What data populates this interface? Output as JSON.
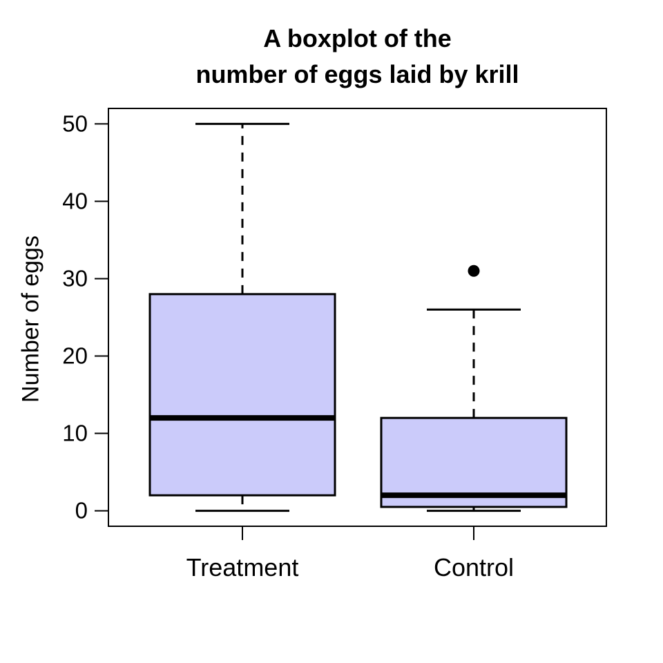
{
  "title": {
    "line1": "A boxplot of the",
    "line2": "number of eggs laid by krill"
  },
  "y_axis": {
    "label": "Number of eggs",
    "ticks": [
      0,
      10,
      20,
      30,
      40,
      50
    ]
  },
  "x_axis": {
    "categories": [
      "Treatment",
      "Control"
    ]
  },
  "chart_data": {
    "type": "boxplot",
    "title": "A boxplot of the number of eggs laid by krill",
    "ylabel": "Number of eggs",
    "xlabel": "",
    "categories": [
      "Treatment",
      "Control"
    ],
    "series": [
      {
        "name": "Treatment",
        "whisker_low": 0,
        "q1": 2,
        "median": 12,
        "q3": 28,
        "whisker_high": 50,
        "outliers": []
      },
      {
        "name": "Control",
        "whisker_low": 0,
        "q1": 0.5,
        "median": 2,
        "q3": 12,
        "whisker_high": 26,
        "outliers": [
          31
        ]
      }
    ],
    "y_ticks": [
      0,
      10,
      20,
      30,
      40,
      50
    ],
    "ylim": [
      -2,
      52
    ],
    "grid": false,
    "legend": false,
    "colors": {
      "box_fill": "#cbcbfa",
      "stroke": "#000000",
      "background": "#ffffff"
    }
  }
}
